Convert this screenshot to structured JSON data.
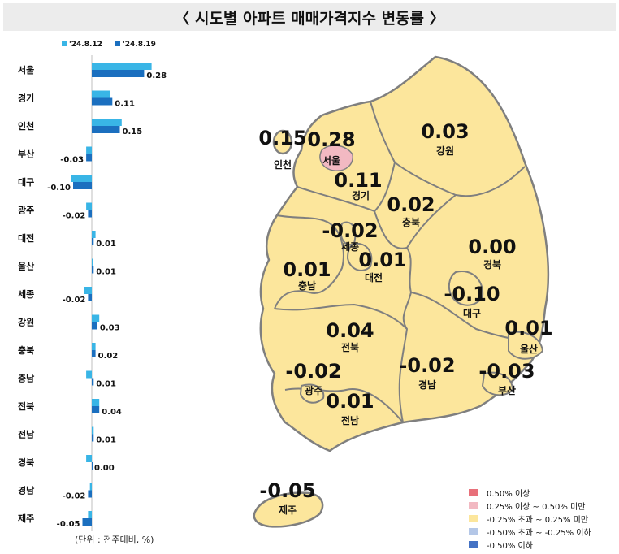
{
  "title": "〈 시도별 아파트 매매가격지수 변동률 〉",
  "unit_note": "(단위 : 전주대비, %)",
  "colors": {
    "series_prev": "#39b5e6",
    "series_curr": "#1b6fbf",
    "map_fill": "#fce69c",
    "map_stroke": "#7f7f7f",
    "seoul_fill": "#f2b9c2"
  },
  "chart_data": {
    "type": "bar",
    "orientation": "horizontal",
    "categories": [
      "서울",
      "경기",
      "인천",
      "부산",
      "대구",
      "광주",
      "대전",
      "울산",
      "세종",
      "강원",
      "충북",
      "충남",
      "전북",
      "전남",
      "경북",
      "경남",
      "제주"
    ],
    "series": [
      {
        "name": "'24.8.12",
        "values": [
          0.32,
          0.1,
          0.16,
          -0.03,
          -0.11,
          -0.03,
          0.02,
          0.0,
          -0.04,
          0.04,
          0.02,
          -0.03,
          0.04,
          0.01,
          -0.03,
          -0.01,
          -0.02
        ]
      },
      {
        "name": "'24.8.19",
        "values": [
          0.28,
          0.11,
          0.15,
          -0.03,
          -0.1,
          -0.02,
          0.01,
          0.01,
          -0.02,
          0.03,
          0.02,
          0.01,
          0.04,
          0.01,
          0.0,
          -0.02,
          -0.05
        ]
      }
    ],
    "value_labels": [
      "0.28",
      "0.11",
      "0.15",
      "-0.03",
      "-0.10",
      "-0.02",
      "0.01",
      "0.01",
      "-0.02",
      "0.03",
      "0.02",
      "0.01",
      "0.04",
      "0.01",
      "0.00",
      "-0.02",
      "-0.05"
    ],
    "legend_position": "top-left",
    "grid": false
  },
  "map": {
    "regions": [
      {
        "name": "인천",
        "value": "0.15"
      },
      {
        "name": "서울",
        "value": "0.28"
      },
      {
        "name": "경기",
        "value": "0.11"
      },
      {
        "name": "강원",
        "value": "0.03"
      },
      {
        "name": "충북",
        "value": "0.02"
      },
      {
        "name": "세종",
        "value": "-0.02"
      },
      {
        "name": "충남",
        "value": "0.01"
      },
      {
        "name": "대전",
        "value": "0.01"
      },
      {
        "name": "경북",
        "value": "0.00"
      },
      {
        "name": "대구",
        "value": "-0.10"
      },
      {
        "name": "전북",
        "value": "0.04"
      },
      {
        "name": "울산",
        "value": "0.01"
      },
      {
        "name": "광주",
        "value": "-0.02"
      },
      {
        "name": "경남",
        "value": "-0.02"
      },
      {
        "name": "부산",
        "value": "-0.03"
      },
      {
        "name": "전남",
        "value": "0.01"
      },
      {
        "name": "제주",
        "value": "-0.05"
      }
    ],
    "legend": [
      {
        "label": "0.50% 이상",
        "color": "#e8707a"
      },
      {
        "label": "0.25% 이상 ~ 0.50% 미만",
        "color": "#f2b9c2"
      },
      {
        "label": "-0.25% 초과 ~ 0.25% 미만",
        "color": "#fce69c"
      },
      {
        "label": "-0.50% 초과 ~ -0.25% 이하",
        "color": "#b4c7e7"
      },
      {
        "label": "-0.50% 이하",
        "color": "#4472c4"
      }
    ]
  }
}
